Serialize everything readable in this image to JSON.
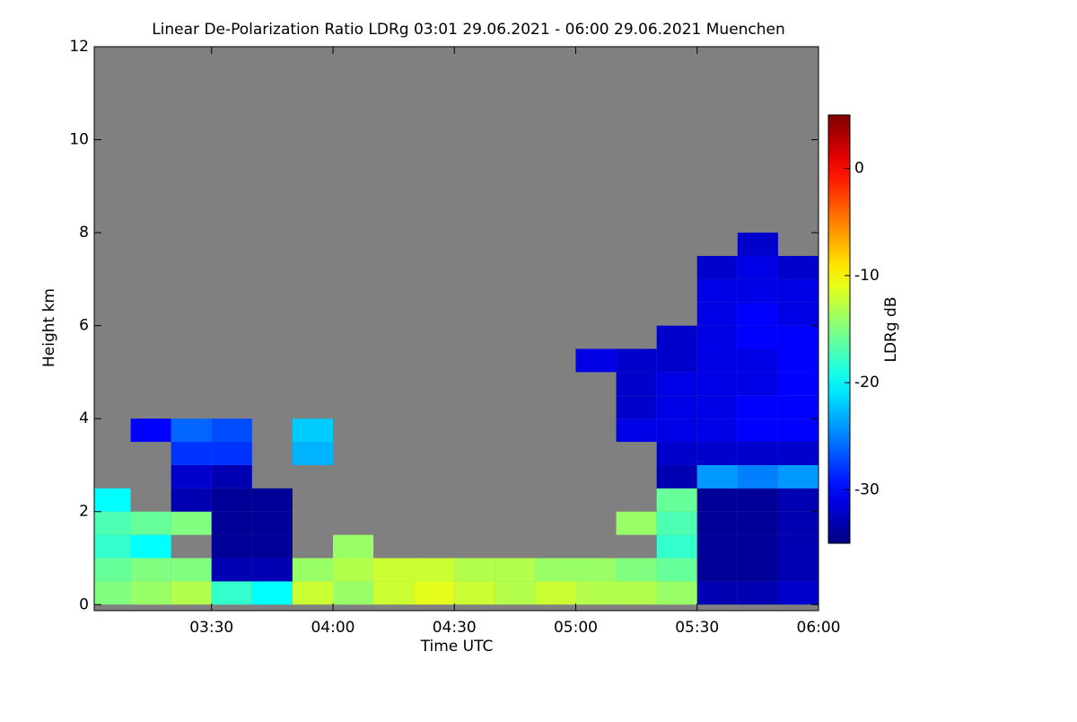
{
  "chart_data": {
    "type": "heatmap",
    "title": "Linear De-Polarization Ratio LDRg   03:01 29.06.2021 - 06:00 29.06.2021 Muenchen",
    "x_label": "Time UTC",
    "y_label": "Height km",
    "colorbar_label": "LDRg dB",
    "colormap": "jet",
    "nodata_color": "#808080",
    "x": [
      3.0833,
      3.25,
      3.4167,
      3.5833,
      3.75,
      3.9167,
      4.0833,
      4.25,
      4.4167,
      4.5833,
      4.75,
      4.9167,
      5.0833,
      5.25,
      5.4167,
      5.5833,
      5.75,
      5.9167
    ],
    "y": [
      0.25,
      0.75,
      1.25,
      1.75,
      2.25,
      2.75,
      3.25,
      3.75,
      4.25,
      4.75,
      5.25,
      5.75,
      6.25,
      6.75,
      7.25,
      7.75,
      8.25,
      8.75,
      9.25,
      9.75,
      10.25,
      10.75,
      11.25,
      11.75
    ],
    "z": [
      [
        -15,
        -14,
        -13,
        -18,
        -20,
        -12,
        -14,
        -12,
        -11,
        -12,
        -13,
        -12,
        -13,
        -13,
        -14,
        -33,
        -33,
        -32
      ],
      [
        -16,
        -15,
        -15,
        -33,
        -33,
        -14,
        -13,
        -12,
        -12,
        -13,
        -13,
        -14,
        -14,
        -15,
        -16,
        -34,
        -34,
        -33
      ],
      [
        -18,
        -20,
        null,
        -34,
        -34,
        null,
        -14,
        null,
        null,
        null,
        null,
        null,
        null,
        null,
        -18,
        -34,
        -34,
        -33
      ],
      [
        -17,
        -16,
        -15,
        -34,
        -34,
        null,
        null,
        null,
        null,
        null,
        null,
        null,
        null,
        -14,
        -17,
        -34,
        -34,
        -33
      ],
      [
        -20,
        null,
        -33,
        -34,
        -34,
        null,
        null,
        null,
        null,
        null,
        null,
        null,
        null,
        null,
        -16,
        -34,
        -34,
        -33
      ],
      [
        null,
        null,
        -32,
        -33,
        null,
        null,
        null,
        null,
        null,
        null,
        null,
        null,
        null,
        null,
        -33,
        -24,
        -25,
        -24
      ],
      [
        null,
        null,
        -28,
        -28,
        null,
        -23,
        null,
        null,
        null,
        null,
        null,
        null,
        null,
        null,
        -32,
        -32,
        -32,
        -32
      ],
      [
        null,
        -30,
        -26,
        -27,
        null,
        -22,
        null,
        null,
        null,
        null,
        null,
        null,
        null,
        -31,
        -31,
        -31,
        -30,
        -30
      ],
      [
        null,
        null,
        null,
        null,
        null,
        null,
        null,
        null,
        null,
        null,
        null,
        null,
        null,
        -32,
        -31,
        -31,
        -30,
        -30
      ],
      [
        null,
        null,
        null,
        null,
        null,
        null,
        null,
        null,
        null,
        null,
        null,
        null,
        null,
        -32,
        -31,
        -31,
        -31,
        -30
      ],
      [
        null,
        null,
        null,
        null,
        null,
        null,
        null,
        null,
        null,
        null,
        null,
        null,
        -31,
        -32,
        -32,
        -31,
        -31,
        -30
      ],
      [
        null,
        null,
        null,
        null,
        null,
        null,
        null,
        null,
        null,
        null,
        null,
        null,
        null,
        null,
        -32,
        -31,
        -30,
        -30
      ],
      [
        null,
        null,
        null,
        null,
        null,
        null,
        null,
        null,
        null,
        null,
        null,
        null,
        null,
        null,
        null,
        -31,
        -30,
        -31
      ],
      [
        null,
        null,
        null,
        null,
        null,
        null,
        null,
        null,
        null,
        null,
        null,
        null,
        null,
        null,
        null,
        -31,
        -31,
        -31
      ],
      [
        null,
        null,
        null,
        null,
        null,
        null,
        null,
        null,
        null,
        null,
        null,
        null,
        null,
        null,
        null,
        -32,
        -31,
        -32
      ],
      [
        null,
        null,
        null,
        null,
        null,
        null,
        null,
        null,
        null,
        null,
        null,
        null,
        null,
        null,
        null,
        null,
        -32,
        null
      ],
      [
        null,
        null,
        null,
        null,
        null,
        null,
        null,
        null,
        null,
        null,
        null,
        null,
        null,
        null,
        null,
        null,
        null,
        null
      ],
      [
        null,
        null,
        null,
        null,
        null,
        null,
        null,
        null,
        null,
        null,
        null,
        null,
        null,
        null,
        null,
        null,
        null,
        null
      ],
      [
        null,
        null,
        null,
        null,
        null,
        null,
        null,
        null,
        null,
        null,
        null,
        null,
        null,
        null,
        null,
        null,
        null,
        null
      ],
      [
        null,
        null,
        null,
        null,
        null,
        null,
        null,
        null,
        null,
        null,
        null,
        null,
        null,
        null,
        null,
        null,
        null,
        null
      ],
      [
        null,
        null,
        null,
        null,
        null,
        null,
        null,
        null,
        null,
        null,
        null,
        null,
        null,
        null,
        null,
        null,
        null,
        null
      ],
      [
        null,
        null,
        null,
        null,
        null,
        null,
        null,
        null,
        null,
        null,
        null,
        null,
        null,
        null,
        null,
        null,
        null,
        null
      ],
      [
        null,
        null,
        null,
        null,
        null,
        null,
        null,
        null,
        null,
        null,
        null,
        null,
        null,
        null,
        null,
        null,
        null,
        null
      ],
      [
        null,
        null,
        null,
        null,
        null,
        null,
        null,
        null,
        null,
        null,
        null,
        null,
        null,
        null,
        null,
        null,
        null,
        null
      ]
    ],
    "xlim": [
      3.0167,
      6.0
    ],
    "xticks": [
      {
        "value": 3.5,
        "label": "03:30"
      },
      {
        "value": 4.0,
        "label": "04:00"
      },
      {
        "value": 4.5,
        "label": "04:30"
      },
      {
        "value": 5.0,
        "label": "05:00"
      },
      {
        "value": 5.5,
        "label": "05:30"
      },
      {
        "value": 6.0,
        "label": "06:00"
      }
    ],
    "ylim": [
      -0.13,
      12
    ],
    "yticks": [
      0,
      2,
      4,
      6,
      8,
      10,
      12
    ],
    "zlim": [
      -35,
      5
    ],
    "zticks": [
      0,
      -10,
      -20,
      -30
    ]
  }
}
